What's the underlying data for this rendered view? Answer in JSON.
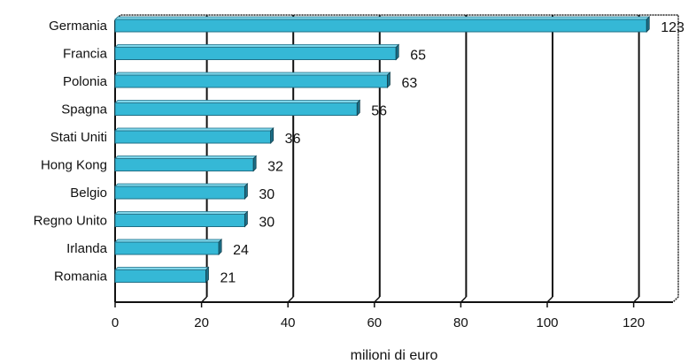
{
  "chart_data": {
    "type": "bar",
    "orientation": "horizontal",
    "categories": [
      "Germania",
      "Francia",
      "Polonia",
      "Spagna",
      "Stati Uniti",
      "Hong Kong",
      "Belgio",
      "Regno Unito",
      "Irlanda",
      "Romania"
    ],
    "values": [
      123,
      65,
      63,
      56,
      36,
      32,
      30,
      30,
      24,
      21
    ],
    "value_labels": [
      "123",
      "65",
      "63",
      "56",
      "36",
      "32",
      "30",
      "30",
      "24",
      "21"
    ],
    "xlabel": "milioni di euro",
    "ylabel": "",
    "title": "",
    "xlim": [
      0,
      130
    ],
    "xticks": [
      0,
      20,
      40,
      60,
      80,
      100,
      120
    ],
    "xtick_labels": [
      "0",
      "20",
      "40",
      "60",
      "80",
      "100",
      "120"
    ],
    "grid": "vertical",
    "bar_color": "#35b8d6",
    "bar_edge_color": "#1f6f86"
  }
}
